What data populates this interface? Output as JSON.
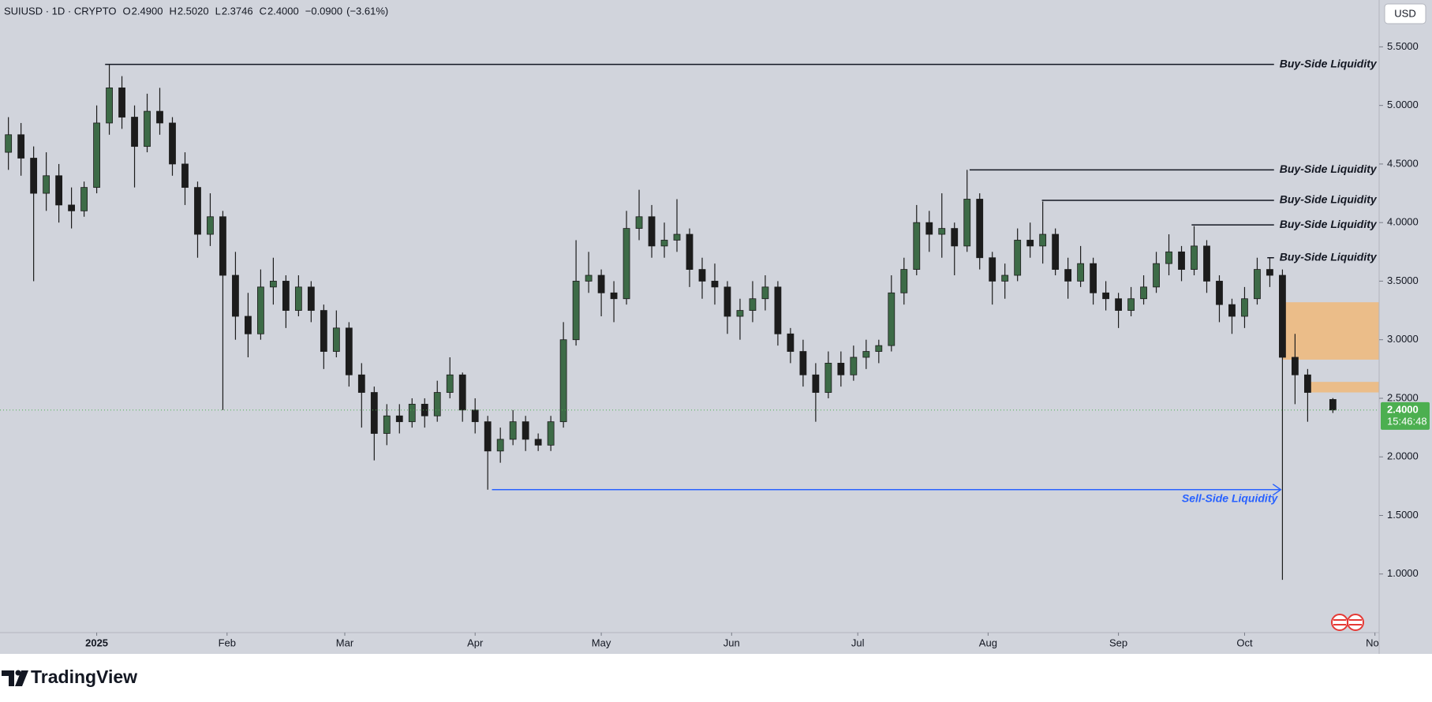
{
  "chart_data": {
    "type": "candlestick",
    "symbol": "SUIUSD · 1D · CRYPTO",
    "quote": [
      {
        "prefix": "O",
        "value": 2.49,
        "label": "2.4900"
      },
      {
        "prefix": "H",
        "value": 2.502,
        "label": "2.5020"
      },
      {
        "prefix": "L",
        "value": 2.3746,
        "label": "2.3746"
      },
      {
        "prefix": "C",
        "value": 2.4,
        "label": "2.4000"
      }
    ],
    "change": {
      "value": -0.09,
      "label": "−0.0900"
    },
    "change_pct": {
      "value": -3.61,
      "label": "(−3.61%)"
    },
    "currency": "USD",
    "brand": "TradingView",
    "up_color": "#3d6b47",
    "down_color": "#1c1c1c",
    "grid": false,
    "xlim": [
      -23,
      305
    ],
    "xticks": [
      {
        "value": 0,
        "label": "2025"
      },
      {
        "value": 31,
        "label": "Feb"
      },
      {
        "value": 59,
        "label": "Mar"
      },
      {
        "value": 90,
        "label": "Apr"
      },
      {
        "value": 120,
        "label": "May"
      },
      {
        "value": 151,
        "label": "Jun"
      },
      {
        "value": 181,
        "label": "Jul"
      },
      {
        "value": 212,
        "label": "Aug"
      },
      {
        "value": 243,
        "label": "Sep"
      },
      {
        "value": 273,
        "label": "Oct"
      },
      {
        "value": 304,
        "label": "Nov"
      }
    ],
    "ylim": [
      0.5,
      5.9
    ],
    "yticks": [
      {
        "value": 1.0,
        "label": "1.0000"
      },
      {
        "value": 1.5,
        "label": "1.5000"
      },
      {
        "value": 2.0,
        "label": "2.0000"
      },
      {
        "value": 2.5,
        "label": "2.5000"
      },
      {
        "value": 3.0,
        "label": "3.0000"
      },
      {
        "value": 3.5,
        "label": "3.5000"
      },
      {
        "value": 4.0,
        "label": "4.0000"
      },
      {
        "value": 4.5,
        "label": "4.5000"
      },
      {
        "value": 5.0,
        "label": "5.0000"
      },
      {
        "value": 5.5,
        "label": "5.5000"
      }
    ],
    "x": [
      -21,
      -18,
      -15,
      -12,
      -9,
      -6,
      -3,
      0,
      3,
      6,
      9,
      12,
      15,
      18,
      21,
      24,
      27,
      30,
      33,
      36,
      39,
      42,
      45,
      48,
      51,
      54,
      57,
      60,
      63,
      66,
      69,
      72,
      75,
      78,
      81,
      84,
      87,
      90,
      93,
      96,
      99,
      102,
      105,
      108,
      111,
      114,
      117,
      120,
      123,
      126,
      129,
      132,
      135,
      138,
      141,
      144,
      147,
      150,
      153,
      156,
      159,
      162,
      165,
      168,
      171,
      174,
      177,
      180,
      183,
      186,
      189,
      192,
      195,
      198,
      201,
      204,
      207,
      210,
      213,
      216,
      219,
      222,
      225,
      228,
      231,
      234,
      237,
      240,
      243,
      246,
      249,
      252,
      255,
      258,
      261,
      264,
      267,
      270,
      273,
      276,
      279,
      282,
      285,
      288,
      294
    ],
    "open": [
      4.6,
      4.75,
      4.55,
      4.25,
      4.4,
      4.15,
      4.1,
      4.3,
      4.85,
      5.15,
      4.9,
      4.65,
      4.95,
      4.85,
      4.5,
      4.3,
      3.9,
      4.05,
      3.55,
      3.2,
      3.05,
      3.45,
      3.5,
      3.25,
      3.45,
      3.25,
      2.9,
      3.1,
      2.7,
      2.55,
      2.2,
      2.35,
      2.3,
      2.45,
      2.35,
      2.55,
      2.7,
      2.4,
      2.3,
      2.05,
      2.15,
      2.3,
      2.15,
      2.1,
      2.3,
      3.0,
      3.5,
      3.55,
      3.4,
      3.35,
      3.95,
      4.05,
      3.8,
      3.85,
      3.9,
      3.6,
      3.5,
      3.45,
      3.2,
      3.25,
      3.35,
      3.45,
      3.05,
      2.9,
      2.7,
      2.55,
      2.8,
      2.7,
      2.85,
      2.9,
      2.95,
      3.4,
      3.6,
      4.0,
      3.9,
      3.95,
      3.8,
      4.2,
      3.7,
      3.5,
      3.55,
      3.85,
      3.8,
      3.9,
      3.6,
      3.5,
      3.65,
      3.4,
      3.35,
      3.25,
      3.35,
      3.45,
      3.65,
      3.75,
      3.6,
      3.8,
      3.5,
      3.3,
      3.2,
      3.35,
      3.6,
      3.55,
      2.85,
      2.7,
      2.49
    ],
    "high": [
      4.9,
      4.85,
      4.65,
      4.6,
      4.5,
      4.3,
      4.35,
      5.0,
      5.35,
      5.25,
      5.0,
      5.1,
      5.15,
      4.9,
      4.6,
      4.35,
      4.25,
      4.1,
      3.75,
      3.4,
      3.6,
      3.7,
      3.55,
      3.55,
      3.5,
      3.3,
      3.25,
      3.15,
      2.8,
      2.6,
      2.45,
      2.45,
      2.5,
      2.5,
      2.65,
      2.85,
      2.72,
      2.5,
      2.35,
      2.25,
      2.4,
      2.35,
      2.2,
      2.35,
      3.15,
      3.85,
      3.75,
      3.6,
      3.5,
      4.1,
      4.28,
      4.15,
      4.0,
      4.2,
      3.95,
      3.7,
      3.65,
      3.5,
      3.35,
      3.5,
      3.55,
      3.5,
      3.1,
      3.0,
      2.8,
      2.9,
      2.9,
      2.95,
      3.0,
      3.0,
      3.55,
      3.7,
      4.15,
      4.1,
      4.25,
      4.0,
      4.45,
      4.25,
      3.75,
      3.65,
      3.95,
      4.0,
      4.18,
      3.95,
      3.7,
      3.8,
      3.7,
      3.5,
      3.4,
      3.45,
      3.55,
      3.75,
      3.9,
      3.8,
      3.97,
      3.85,
      3.55,
      3.35,
      3.45,
      3.7,
      3.7,
      3.6,
      3.05,
      2.75,
      2.502
    ],
    "low": [
      4.45,
      4.4,
      3.5,
      4.1,
      4.0,
      3.95,
      4.05,
      4.25,
      4.75,
      4.8,
      4.3,
      4.6,
      4.75,
      4.4,
      4.15,
      3.7,
      3.8,
      2.4,
      3.0,
      2.85,
      3.0,
      3.3,
      3.1,
      3.2,
      3.15,
      2.75,
      2.85,
      2.6,
      2.25,
      1.97,
      2.1,
      2.2,
      2.25,
      2.25,
      2.3,
      2.5,
      2.3,
      2.2,
      1.72,
      1.95,
      2.1,
      2.05,
      2.05,
      2.05,
      2.25,
      2.95,
      3.4,
      3.2,
      3.15,
      3.3,
      3.85,
      3.7,
      3.7,
      3.75,
      3.45,
      3.35,
      3.3,
      3.05,
      3.0,
      3.15,
      3.25,
      2.95,
      2.8,
      2.6,
      2.3,
      2.5,
      2.6,
      2.65,
      2.75,
      2.8,
      2.9,
      3.3,
      3.55,
      3.75,
      3.7,
      3.55,
      3.75,
      3.6,
      3.3,
      3.35,
      3.5,
      3.7,
      3.65,
      3.55,
      3.35,
      3.45,
      3.3,
      3.25,
      3.1,
      3.2,
      3.3,
      3.4,
      3.55,
      3.5,
      3.55,
      3.4,
      3.15,
      3.05,
      3.1,
      3.3,
      3.45,
      0.95,
      2.45,
      2.3,
      2.3746
    ],
    "close": [
      4.75,
      4.55,
      4.25,
      4.4,
      4.15,
      4.1,
      4.3,
      4.85,
      5.15,
      4.9,
      4.65,
      4.95,
      4.85,
      4.5,
      4.3,
      3.9,
      4.05,
      3.55,
      3.2,
      3.05,
      3.45,
      3.5,
      3.25,
      3.45,
      3.25,
      2.9,
      3.1,
      2.7,
      2.55,
      2.2,
      2.35,
      2.3,
      2.45,
      2.35,
      2.55,
      2.7,
      2.4,
      2.3,
      2.05,
      2.15,
      2.3,
      2.15,
      2.1,
      2.3,
      3.0,
      3.5,
      3.55,
      3.4,
      3.35,
      3.95,
      4.05,
      3.8,
      3.85,
      3.9,
      3.6,
      3.5,
      3.45,
      3.2,
      3.25,
      3.35,
      3.45,
      3.05,
      2.9,
      2.7,
      2.55,
      2.8,
      2.7,
      2.85,
      2.9,
      2.95,
      3.4,
      3.6,
      4.0,
      3.9,
      3.95,
      3.8,
      4.2,
      3.7,
      3.5,
      3.55,
      3.85,
      3.8,
      3.9,
      3.6,
      3.5,
      3.65,
      3.4,
      3.35,
      3.25,
      3.35,
      3.45,
      3.65,
      3.75,
      3.6,
      3.8,
      3.5,
      3.3,
      3.2,
      3.35,
      3.6,
      3.55,
      2.85,
      2.7,
      2.55,
      2.4
    ],
    "levels": [
      {
        "label": "Buy-Side Liquidity",
        "value": 5.35,
        "x_start": 2,
        "x_end": 280
      },
      {
        "label": "Buy-Side Liquidity",
        "value": 4.45,
        "x_start": 207.6,
        "x_end": 280
      },
      {
        "label": "Buy-Side Liquidity",
        "value": 4.19,
        "x_start": 224.8,
        "x_end": 280
      },
      {
        "label": "Buy-Side Liquidity",
        "value": 3.98,
        "x_start": 260.4,
        "x_end": 280
      },
      {
        "label": "Buy-Side Liquidity",
        "value": 3.7,
        "x_start": 278.4,
        "x_end": 280
      }
    ],
    "sell_level": {
      "label": "Sell-Side Liquidity",
      "value": 1.72,
      "x_start": 94,
      "x_end": 281.6,
      "color": "#2962ff"
    },
    "zones": [
      {
        "low": 2.83,
        "high": 3.32,
        "x_start": 282
      },
      {
        "low": 2.55,
        "high": 2.64,
        "x_start": 288
      }
    ],
    "zone_color": "#f0b97a",
    "last_price": {
      "value": 2.4,
      "label": "2.4000"
    },
    "countdown": "15:46:48",
    "last_color": "#4caf50"
  }
}
